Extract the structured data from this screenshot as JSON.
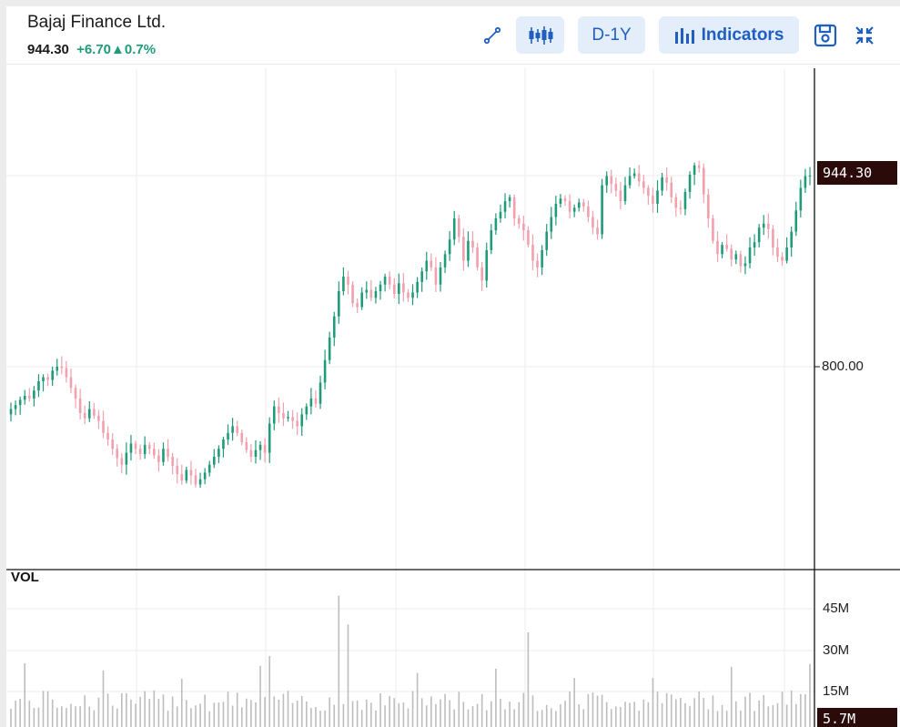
{
  "header": {
    "title": "Bajaj Finance Ltd.",
    "price": "944.30",
    "change": "+6.70",
    "change_arrow": "▲",
    "change_pct": "0.7%"
  },
  "toolbar": {
    "draw_icon": "line-draw-icon",
    "candle_icon": "candlestick-icon",
    "range_label": "D-1Y",
    "indicators_icon": "bar-chart-icon",
    "indicators_label": "Indicators",
    "save_icon": "save-icon",
    "collapse_icon": "collapse-icon"
  },
  "colors": {
    "up": "#1f9b7a",
    "down": "#f2a0ad",
    "accent": "#1f5fbf",
    "price_tag_bg": "#2b0a0a"
  },
  "chart_data": {
    "type": "candlestick",
    "symbol": "Bajaj Finance Ltd.",
    "range": "D-1Y",
    "y_ticks": [
      "944.30",
      "800.00"
    ],
    "last_price": "944.30",
    "close_series": [
      768,
      771,
      775,
      778,
      776,
      782,
      789,
      792,
      790,
      797,
      800,
      799,
      792,
      784,
      776,
      765,
      761,
      768,
      763,
      759,
      750,
      745,
      738,
      731,
      726,
      735,
      742,
      738,
      734,
      741,
      738,
      733,
      728,
      738,
      732,
      725,
      719,
      714,
      722,
      718,
      711,
      715,
      720,
      726,
      732,
      738,
      745,
      750,
      755,
      750,
      743,
      737,
      732,
      737,
      741,
      735,
      757,
      770,
      765,
      761,
      762,
      759,
      755,
      764,
      770,
      776,
      772,
      788,
      805,
      822,
      838,
      857,
      868,
      862,
      848,
      845,
      856,
      858,
      852,
      857,
      862,
      868,
      862,
      855,
      863,
      856,
      852,
      856,
      864,
      872,
      880,
      875,
      862,
      875,
      885,
      896,
      912,
      898,
      880,
      895,
      890,
      875,
      865,
      888,
      903,
      912,
      917,
      925,
      928,
      912,
      908,
      903,
      892,
      880,
      875,
      888,
      902,
      913,
      923,
      927,
      925,
      917,
      920,
      924,
      921,
      913,
      905,
      900,
      937,
      944,
      938,
      933,
      925,
      937,
      944,
      946,
      940,
      935,
      929,
      923,
      933,
      943,
      939,
      928,
      920,
      919,
      932,
      945,
      952,
      950,
      930,
      912,
      895,
      885,
      892,
      889,
      881,
      885,
      876,
      878,
      890,
      894,
      905,
      908,
      904,
      890,
      883,
      880,
      890,
      902,
      918,
      935,
      944,
      944.3
    ],
    "volume_axis_ticks": [
      "45M",
      "30M",
      "15M"
    ],
    "volume_last": "5.7M",
    "volume_max_m": 50
  },
  "volume": {
    "label": "VOL",
    "ticks": [
      "45M",
      "30M",
      "15M"
    ],
    "last": "5.7M"
  }
}
